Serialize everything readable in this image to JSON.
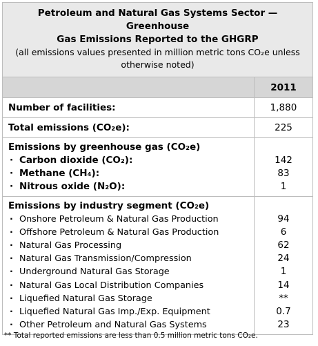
{
  "title": {
    "line1": "Petroleum and Natural Gas Systems Sector — Greenhouse",
    "line2": "Gas Emissions Reported to the GHGRP",
    "line3": "(all emissions values presented in million metric tons CO₂e unless",
    "line4": "otherwise noted)"
  },
  "header": {
    "year": "2011"
  },
  "facilities": {
    "label": "Number of facilities:",
    "value": "1,880"
  },
  "total": {
    "label": "Total emissions (CO₂e):",
    "value": "225"
  },
  "by_gas": {
    "heading": "Emissions by greenhouse gas (CO₂e)",
    "items": [
      {
        "label": "Carbon dioxide (CO₂):",
        "value": "142"
      },
      {
        "label": "Methane (CH₄):",
        "value": "83"
      },
      {
        "label": "Nitrous oxide (N₂O):",
        "value": "1"
      }
    ]
  },
  "by_segment": {
    "heading": "Emissions by industry segment (CO₂e)",
    "items": [
      {
        "label": "Onshore Petroleum & Natural Gas Production",
        "value": "94"
      },
      {
        "label": "Offshore Petroleum & Natural Gas Production",
        "value": "6"
      },
      {
        "label": "Natural Gas Processing",
        "value": "62"
      },
      {
        "label": "Natural Gas Transmission/Compression",
        "value": "24"
      },
      {
        "label": "Underground Natural Gas Storage",
        "value": "1"
      },
      {
        "label": "Natural Gas Local Distribution Companies",
        "value": "14"
      },
      {
        "label": "Liquefied Natural Gas Storage",
        "value": "**"
      },
      {
        "label": "Liquefied Natural Gas Imp./Exp. Equipment",
        "value": "0.7"
      },
      {
        "label": "Other Petroleum and Natural Gas Systems",
        "value": "23"
      }
    ]
  },
  "bullet": "·",
  "footnote": "** Total reported emissions are less than 0.5 million metric tons CO₂e."
}
